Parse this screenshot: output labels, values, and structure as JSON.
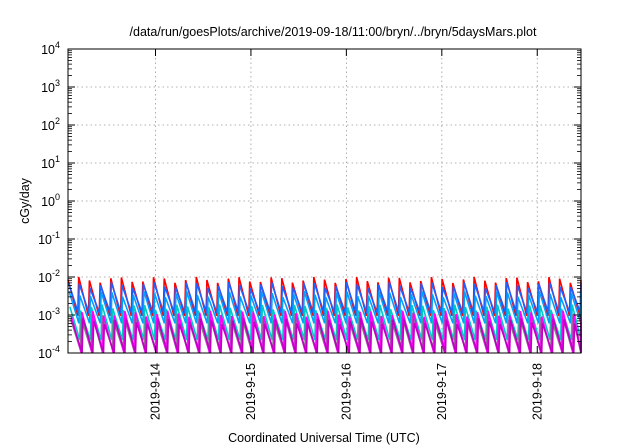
{
  "chart_data": {
    "type": "line",
    "title": "/data/run/goesPlots/archive/2019-09-18/11:00/bryn/../bryn/5daysMars.plot",
    "xlabel": "Coordinated Universal Time (UTC)",
    "ylabel": "cGy/day",
    "yscale": "log",
    "ylim": [
      0.0001,
      10000
    ],
    "xlim": [
      "2019-09-13 02:00",
      "2019-09-18 11:00"
    ],
    "x_ticks": [
      {
        "value": "2019-09-14 00:00",
        "label": "2019-9-14"
      },
      {
        "value": "2019-09-15 00:00",
        "label": "2019-9-15"
      },
      {
        "value": "2019-09-16 00:00",
        "label": "2019-9-16"
      },
      {
        "value": "2019-09-17 00:00",
        "label": "2019-9-17"
      },
      {
        "value": "2019-09-18 00:00",
        "label": "2019-9-18"
      }
    ],
    "y_ticks": [
      {
        "value": 0.0001,
        "base": "10",
        "exp": "-4"
      },
      {
        "value": 0.001,
        "base": "10",
        "exp": "-3"
      },
      {
        "value": 0.01,
        "base": "10",
        "exp": "-2"
      },
      {
        "value": 0.1,
        "base": "10",
        "exp": "-1"
      },
      {
        "value": 1,
        "base": "10",
        "exp": "0"
      },
      {
        "value": 10,
        "base": "10",
        "exp": "1"
      },
      {
        "value": 100,
        "base": "10",
        "exp": "2"
      },
      {
        "value": 1000,
        "base": "10",
        "exp": "3"
      },
      {
        "value": 10000,
        "base": "10",
        "exp": "4"
      }
    ],
    "grid": true,
    "pattern": {
      "cycles": 48,
      "period_hours": 2.7,
      "description_note_removed": true
    },
    "series": [
      {
        "color": "#ff0000",
        "peak": 0.0085,
        "trough": 0.00095,
        "phase": 0.0
      },
      {
        "color": "#2060ff",
        "peak": 0.0062,
        "trough": 0.0011,
        "phase": 0.05
      },
      {
        "color": "#00a0ff",
        "peak": 0.0036,
        "trough": 0.0006,
        "phase": 0.1
      },
      {
        "color": "#00c8c8",
        "peak": 0.0016,
        "trough": 0.00022,
        "phase": 0.18
      },
      {
        "color": "#808080",
        "peak": 0.0009,
        "trough": 0.00012,
        "phase": 0.25
      },
      {
        "color": "#ff00ff",
        "peak": 0.0011,
        "trough": 0.0001,
        "phase": 0.32
      },
      {
        "color": "#c000c0",
        "peak": 0.0007,
        "trough": 0.0001,
        "phase": 0.4
      }
    ]
  }
}
